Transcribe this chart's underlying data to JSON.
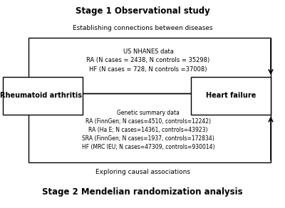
{
  "title_top": "Stage 1 Observational study",
  "title_bottom": "Stage 2 Mendelian randomization analysis",
  "label_top": "Establishing connections between diseases",
  "label_bottom": "Exploring causal associations",
  "box_left_text": "Rheumatoid arthritis",
  "box_right_text": "Heart failure",
  "center_top_text": "US NHANES data\nRA (N cases = 2438, N controls = 35298)\nHF (N cases = 728, N controls =37008)",
  "center_bottom_text": "Genetic summary data\nRA (FinnGen; N cases=4510, controls=12242)\nRA (Ha E; N cases=14361, controls=43923)\nSRA (FinnGen; N cases=1937, controls=172834)\nHF (MRC IEU; N cases=47309, controls=930014)",
  "bg_color": "#ffffff",
  "box_edge_color": "#000000",
  "text_color": "#000000",
  "arrow_color": "#000000"
}
